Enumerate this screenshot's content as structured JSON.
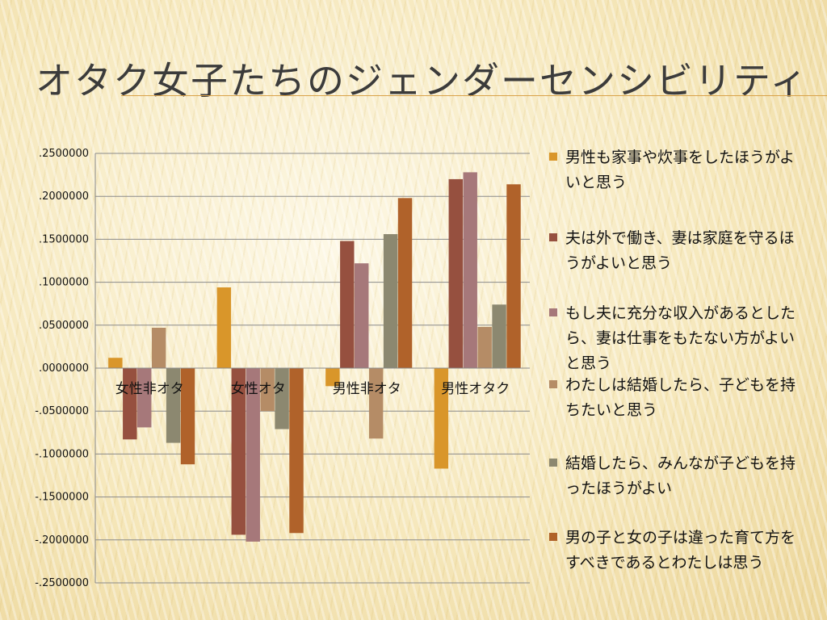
{
  "slide": {
    "title": "オタク女子たちのジェンダーセンシビリティ"
  },
  "chart_data": {
    "type": "bar",
    "title": "",
    "xlabel": "",
    "ylabel": "",
    "ylim": [
      -0.25,
      0.25
    ],
    "yticks": [
      ".2500000",
      ".2000000",
      ".1500000",
      ".1000000",
      ".0500000",
      ".0000000",
      "-.0500000",
      "-.1000000",
      "-.1500000",
      "-.2000000",
      "-.2500000"
    ],
    "grid": true,
    "legend_position": "right",
    "categories": [
      "女性非オタ",
      "女性オタ",
      "男性非オタ",
      "男性オタク"
    ],
    "series": [
      {
        "name": "男性も家事や炊事をしたほうがよいと思う",
        "color": "#d9962a",
        "values": [
          0.012,
          0.094,
          -0.021,
          -0.117
        ]
      },
      {
        "name": "夫は外で働き、妻は家庭を守るほうがよいと思う",
        "color": "#96503f",
        "values": [
          -0.083,
          -0.194,
          0.148,
          0.22
        ]
      },
      {
        "name": "もし夫に充分な収入があるとしたら、妻は仕事をもたない方がよいと思う",
        "color": "#a6787a",
        "values": [
          -0.069,
          -0.202,
          0.122,
          0.228
        ]
      },
      {
        "name": "わたしは結婚したら、子どもを持ちたいと思う",
        "color": "#b58c66",
        "values": [
          0.047,
          -0.05,
          -0.082,
          0.048
        ]
      },
      {
        "name": "結婚したら、みんなが子どもを持ったほうがよい",
        "color": "#8c8870",
        "values": [
          -0.087,
          -0.071,
          0.156,
          0.074
        ]
      },
      {
        "name": "男の子と女の子は違った育て方をすべきであるとわたしは思う",
        "color": "#b0622a",
        "values": [
          -0.112,
          -0.192,
          0.198,
          0.214
        ]
      }
    ]
  }
}
